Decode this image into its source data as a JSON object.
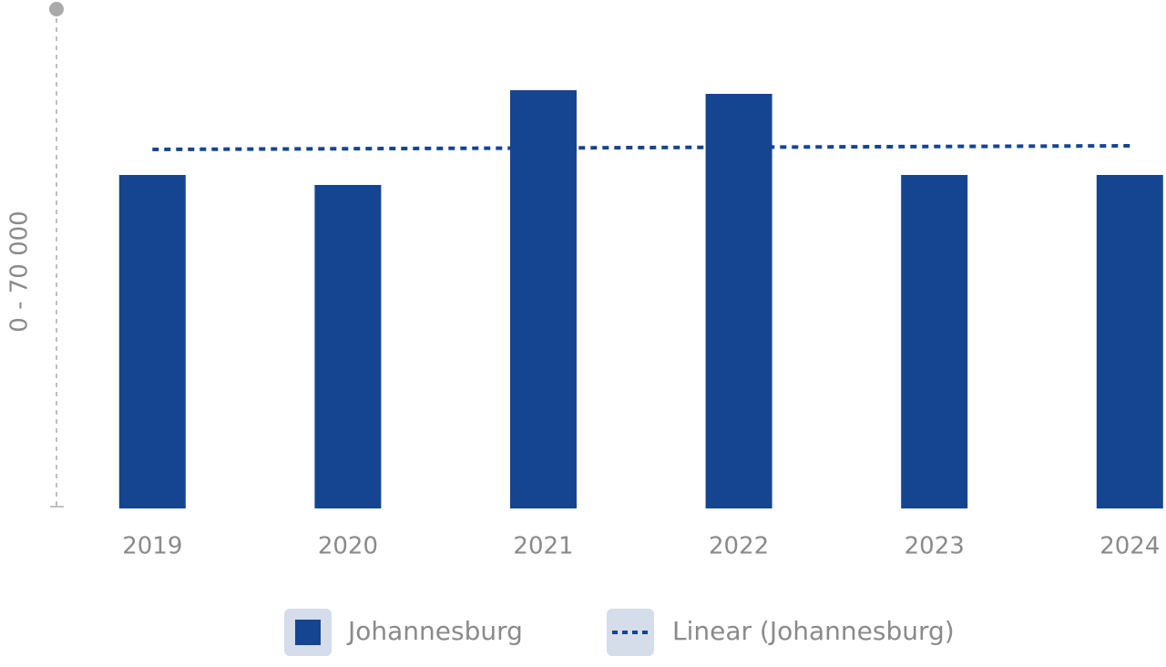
{
  "chart_data": {
    "type": "bar",
    "y_axis_label": "0 - 70 000",
    "categories": [
      "2019",
      "2020",
      "2021",
      "2022",
      "2023",
      "2024"
    ],
    "ylim": [
      0,
      70000
    ],
    "series": [
      {
        "name": "Johannesburg",
        "color": "#154591",
        "values": [
          46750,
          45350,
          58630,
          58120,
          46750,
          46750
        ]
      },
      {
        "name": "Linear (Johannesburg)",
        "type": "line",
        "dashed": true,
        "color": "#154591",
        "values": [
          50330,
          50430,
          50530,
          50640,
          50740,
          50840
        ]
      }
    ]
  }
}
